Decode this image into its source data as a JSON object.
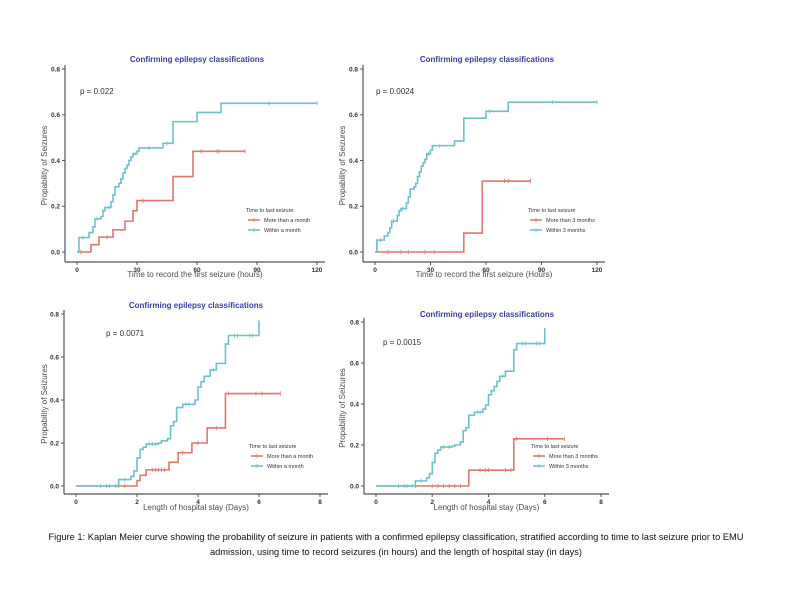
{
  "colors": {
    "red": "#e0766d",
    "teal": "#6ec1c9",
    "title": "#3b3ea0"
  },
  "caption": "Figure 1: Kaplan Meier curve showing the probability of seizure in patients with a confirmed epilepsy classification, stratified according to time to last seizure prior to EMU admission, using time to record seizures (in hours) and the length of hospital stay (in days)",
  "chart_data": [
    {
      "type": "line",
      "title": "Confirming epilepsy classifications",
      "xlabel": "Time to record the first seizure (hours)",
      "ylabel": "Propability of Seizures",
      "xlim": [
        0,
        120
      ],
      "ylim": [
        0,
        0.8
      ],
      "xticks": [
        "0",
        "30",
        "60",
        "90",
        "120"
      ],
      "yticks": [
        "0.0",
        "0.2",
        "0.4",
        "0.6",
        "0.8"
      ],
      "xtick_values": [
        0,
        30,
        60,
        90,
        120
      ],
      "ytick_values": [
        0,
        0.2,
        0.4,
        0.6,
        0.8
      ],
      "annotation": "p = 0.022",
      "legend_title": "Time to last seizure",
      "legend_position": "bottom-right",
      "grid": false,
      "series": [
        {
          "name": "More than a month",
          "color": "red",
          "steps": [
            [
              0,
              0
            ],
            [
              7,
              0.032
            ],
            [
              11,
              0.065
            ],
            [
              18,
              0.097
            ],
            [
              24,
              0.135
            ],
            [
              28,
              0.18
            ],
            [
              30,
              0.225
            ],
            [
              48,
              0.33
            ],
            [
              58,
              0.44
            ],
            [
              84,
              0.44
            ]
          ],
          "censor": [
            [
              2,
              0
            ],
            [
              15,
              0.065
            ],
            [
              33,
              0.225
            ],
            [
              62,
              0.44
            ],
            [
              70,
              0.44
            ],
            [
              71,
              0.44
            ],
            [
              84,
              0.44
            ]
          ]
        },
        {
          "name": "Within a month",
          "color": "teal",
          "steps": [
            [
              0,
              0
            ],
            [
              1,
              0.063
            ],
            [
              4,
              0.063
            ],
            [
              6,
              0.085
            ],
            [
              8,
              0.11
            ],
            [
              9,
              0.145
            ],
            [
              12,
              0.155
            ],
            [
              13,
              0.18
            ],
            [
              14,
              0.195
            ],
            [
              17,
              0.22
            ],
            [
              18,
              0.25
            ],
            [
              19,
              0.285
            ],
            [
              21,
              0.3
            ],
            [
              22,
              0.32
            ],
            [
              23,
              0.345
            ],
            [
              24,
              0.365
            ],
            [
              25,
              0.38
            ],
            [
              26,
              0.4
            ],
            [
              27,
              0.415
            ],
            [
              28,
              0.43
            ],
            [
              30,
              0.44
            ],
            [
              31,
              0.455
            ],
            [
              43,
              0.475
            ],
            [
              48,
              0.57
            ],
            [
              60,
              0.61
            ],
            [
              72,
              0.65
            ],
            [
              120,
              0.65
            ]
          ],
          "censor": [
            [
              3,
              0.063
            ],
            [
              10,
              0.145
            ],
            [
              16,
              0.195
            ],
            [
              29,
              0.43
            ],
            [
              36,
              0.455
            ],
            [
              45,
              0.475
            ],
            [
              96,
              0.65
            ],
            [
              120,
              0.65
            ]
          ]
        }
      ]
    },
    {
      "type": "line",
      "title": "Confirming epilepsy classifications",
      "xlabel": "Time to record the first seizure (Hours)",
      "ylabel": "Propability of Seizures",
      "xlim": [
        0,
        120
      ],
      "ylim": [
        0,
        0.8
      ],
      "xticks": [
        "0",
        "30",
        "60",
        "90",
        "120"
      ],
      "yticks": [
        "0.0",
        "0.2",
        "0.4",
        "0.6",
        "0.8"
      ],
      "xtick_values": [
        0,
        30,
        60,
        90,
        120
      ],
      "ytick_values": [
        0,
        0.2,
        0.4,
        0.6,
        0.8
      ],
      "annotation": "p = 0.0024",
      "legend_title": "Time to last seizure",
      "legend_position": "bottom-right",
      "grid": false,
      "series": [
        {
          "name": "More than 3 months",
          "color": "red",
          "steps": [
            [
              0,
              0
            ],
            [
              48,
              0.083
            ],
            [
              58,
              0.31
            ],
            [
              84,
              0.31
            ]
          ],
          "censor": [
            [
              7,
              0
            ],
            [
              14,
              0
            ],
            [
              18,
              0
            ],
            [
              27,
              0
            ],
            [
              32,
              0
            ],
            [
              70,
              0.31
            ],
            [
              72,
              0.31
            ],
            [
              84,
              0.31
            ]
          ]
        },
        {
          "name": "Within 3 months",
          "color": "teal",
          "steps": [
            [
              0,
              0
            ],
            [
              1,
              0.052
            ],
            [
              4,
              0.052
            ],
            [
              5,
              0.07
            ],
            [
              7,
              0.085
            ],
            [
              8,
              0.105
            ],
            [
              9,
              0.135
            ],
            [
              11,
              0.135
            ],
            [
              12,
              0.16
            ],
            [
              13,
              0.18
            ],
            [
              14,
              0.19
            ],
            [
              16,
              0.19
            ],
            [
              17,
              0.215
            ],
            [
              18,
              0.24
            ],
            [
              19,
              0.275
            ],
            [
              21,
              0.285
            ],
            [
              22,
              0.3
            ],
            [
              23,
              0.33
            ],
            [
              24,
              0.35
            ],
            [
              25,
              0.375
            ],
            [
              26,
              0.39
            ],
            [
              27,
              0.405
            ],
            [
              28,
              0.43
            ],
            [
              30,
              0.445
            ],
            [
              31,
              0.465
            ],
            [
              43,
              0.485
            ],
            [
              48,
              0.585
            ],
            [
              60,
              0.615
            ],
            [
              72,
              0.655
            ],
            [
              120,
              0.655
            ]
          ],
          "censor": [
            [
              3,
              0.052
            ],
            [
              10,
              0.135
            ],
            [
              15,
              0.19
            ],
            [
              29,
              0.43
            ],
            [
              35,
              0.465
            ],
            [
              62,
              0.615
            ],
            [
              96,
              0.655
            ],
            [
              120,
              0.655
            ]
          ]
        }
      ]
    },
    {
      "type": "line",
      "title": "Confirming epilepsy classifications",
      "xlabel": "Length of hospital stay (Days)",
      "ylabel": "Propability of Seizures",
      "xlim": [
        0,
        8
      ],
      "ylim": [
        0,
        0.8
      ],
      "xticks": [
        "0",
        "2",
        "4",
        "6",
        "8"
      ],
      "yticks": [
        "0.0",
        "0.2",
        "0.4",
        "0.6",
        "0.8"
      ],
      "xtick_values": [
        0,
        2,
        4,
        6,
        8
      ],
      "ytick_values": [
        0,
        0.2,
        0.4,
        0.6,
        0.8
      ],
      "annotation": "p = 0.0071",
      "legend_title": "Time to last seizure",
      "legend_position": "bottom-right",
      "grid": false,
      "series": [
        {
          "name": "More than a month",
          "color": "red",
          "steps": [
            [
              0,
              0
            ],
            [
              2.0,
              0.025
            ],
            [
              2.1,
              0.05
            ],
            [
              2.3,
              0.075
            ],
            [
              3.05,
              0.11
            ],
            [
              3.35,
              0.155
            ],
            [
              3.8,
              0.2
            ],
            [
              4.3,
              0.27
            ],
            [
              4.9,
              0.43
            ],
            [
              6.7,
              0.43
            ]
          ],
          "censor": [
            [
              1.4,
              0
            ],
            [
              1.6,
              0
            ],
            [
              2.5,
              0.075
            ],
            [
              2.6,
              0.075
            ],
            [
              2.7,
              0.075
            ],
            [
              2.8,
              0.075
            ],
            [
              2.9,
              0.075
            ],
            [
              3.5,
              0.155
            ],
            [
              4.0,
              0.2
            ],
            [
              4.6,
              0.27
            ],
            [
              5.0,
              0.43
            ],
            [
              5.9,
              0.43
            ],
            [
              6.1,
              0.43
            ],
            [
              6.7,
              0.43
            ]
          ]
        },
        {
          "name": "Within a month",
          "color": "teal",
          "steps": [
            [
              0,
              0
            ],
            [
              1.4,
              0.03
            ],
            [
              1.8,
              0.045
            ],
            [
              1.9,
              0.07
            ],
            [
              2.0,
              0.13
            ],
            [
              2.1,
              0.17
            ],
            [
              2.2,
              0.18
            ],
            [
              2.3,
              0.195
            ],
            [
              2.7,
              0.2
            ],
            [
              2.8,
              0.21
            ],
            [
              3.0,
              0.22
            ],
            [
              3.1,
              0.28
            ],
            [
              3.2,
              0.3
            ],
            [
              3.3,
              0.365
            ],
            [
              3.5,
              0.38
            ],
            [
              3.9,
              0.4
            ],
            [
              4.0,
              0.46
            ],
            [
              4.1,
              0.485
            ],
            [
              4.2,
              0.51
            ],
            [
              4.4,
              0.54
            ],
            [
              4.6,
              0.57
            ],
            [
              4.9,
              0.66
            ],
            [
              5.0,
              0.7
            ],
            [
              6.0,
              0.77
            ]
          ],
          "censor": [
            [
              0.8,
              0
            ],
            [
              1.0,
              0
            ],
            [
              1.1,
              0
            ],
            [
              1.3,
              0
            ],
            [
              1.6,
              0.03
            ],
            [
              2.4,
              0.195
            ],
            [
              2.5,
              0.195
            ],
            [
              2.6,
              0.195
            ],
            [
              3.6,
              0.38
            ],
            [
              3.7,
              0.38
            ],
            [
              4.5,
              0.54
            ],
            [
              5.2,
              0.7
            ],
            [
              5.3,
              0.7
            ],
            [
              5.7,
              0.7
            ],
            [
              5.8,
              0.7
            ]
          ]
        }
      ]
    },
    {
      "type": "line",
      "title": "Confirming epilepsy classifications",
      "xlabel": "Length of hospital stay (Days)",
      "ylabel": "Propability of Seizures",
      "xlim": [
        0,
        8
      ],
      "ylim": [
        0,
        0.8
      ],
      "xticks": [
        "0",
        "2",
        "4",
        "6",
        "8"
      ],
      "yticks": [
        "0.0",
        "0.2",
        "0.4",
        "0.6",
        "0.8"
      ],
      "xtick_values": [
        0,
        2,
        4,
        6,
        8
      ],
      "ytick_values": [
        0,
        0.2,
        0.4,
        0.6,
        0.8
      ],
      "annotation": "p = 0.0015",
      "legend_title": "Time to last seizure",
      "legend_position": "bottom-right",
      "grid": false,
      "series": [
        {
          "name": "More than 3 months",
          "color": "red",
          "steps": [
            [
              0,
              0
            ],
            [
              3.3,
              0.077
            ],
            [
              4.9,
              0.23
            ],
            [
              6.7,
              0.23
            ]
          ],
          "censor": [
            [
              1.4,
              0
            ],
            [
              2.0,
              0
            ],
            [
              2.2,
              0
            ],
            [
              2.4,
              0
            ],
            [
              2.6,
              0
            ],
            [
              2.8,
              0
            ],
            [
              3.0,
              0
            ],
            [
              3.7,
              0.077
            ],
            [
              3.9,
              0.077
            ],
            [
              4.0,
              0.077
            ],
            [
              4.6,
              0.077
            ],
            [
              4.8,
              0.077
            ],
            [
              5.0,
              0.23
            ],
            [
              6.1,
              0.23
            ],
            [
              6.7,
              0.23
            ]
          ]
        },
        {
          "name": "Within 3 months",
          "color": "teal",
          "steps": [
            [
              0,
              0
            ],
            [
              1.4,
              0.025
            ],
            [
              1.8,
              0.04
            ],
            [
              1.9,
              0.06
            ],
            [
              2.0,
              0.115
            ],
            [
              2.1,
              0.16
            ],
            [
              2.2,
              0.175
            ],
            [
              2.3,
              0.19
            ],
            [
              2.7,
              0.195
            ],
            [
              2.8,
              0.2
            ],
            [
              3.0,
              0.215
            ],
            [
              3.1,
              0.27
            ],
            [
              3.2,
              0.285
            ],
            [
              3.3,
              0.345
            ],
            [
              3.5,
              0.36
            ],
            [
              3.8,
              0.375
            ],
            [
              3.9,
              0.395
            ],
            [
              4.0,
              0.445
            ],
            [
              4.1,
              0.465
            ],
            [
              4.2,
              0.485
            ],
            [
              4.3,
              0.51
            ],
            [
              4.4,
              0.535
            ],
            [
              4.6,
              0.56
            ],
            [
              4.9,
              0.665
            ],
            [
              5.0,
              0.695
            ],
            [
              6.0,
              0.77
            ]
          ],
          "censor": [
            [
              0.8,
              0
            ],
            [
              1.0,
              0
            ],
            [
              1.1,
              0
            ],
            [
              1.3,
              0
            ],
            [
              1.6,
              0.025
            ],
            [
              2.4,
              0.19
            ],
            [
              2.6,
              0.19
            ],
            [
              3.6,
              0.36
            ],
            [
              3.7,
              0.36
            ],
            [
              4.5,
              0.535
            ],
            [
              5.2,
              0.695
            ],
            [
              5.3,
              0.695
            ],
            [
              5.7,
              0.695
            ],
            [
              5.8,
              0.695
            ]
          ]
        }
      ]
    }
  ]
}
